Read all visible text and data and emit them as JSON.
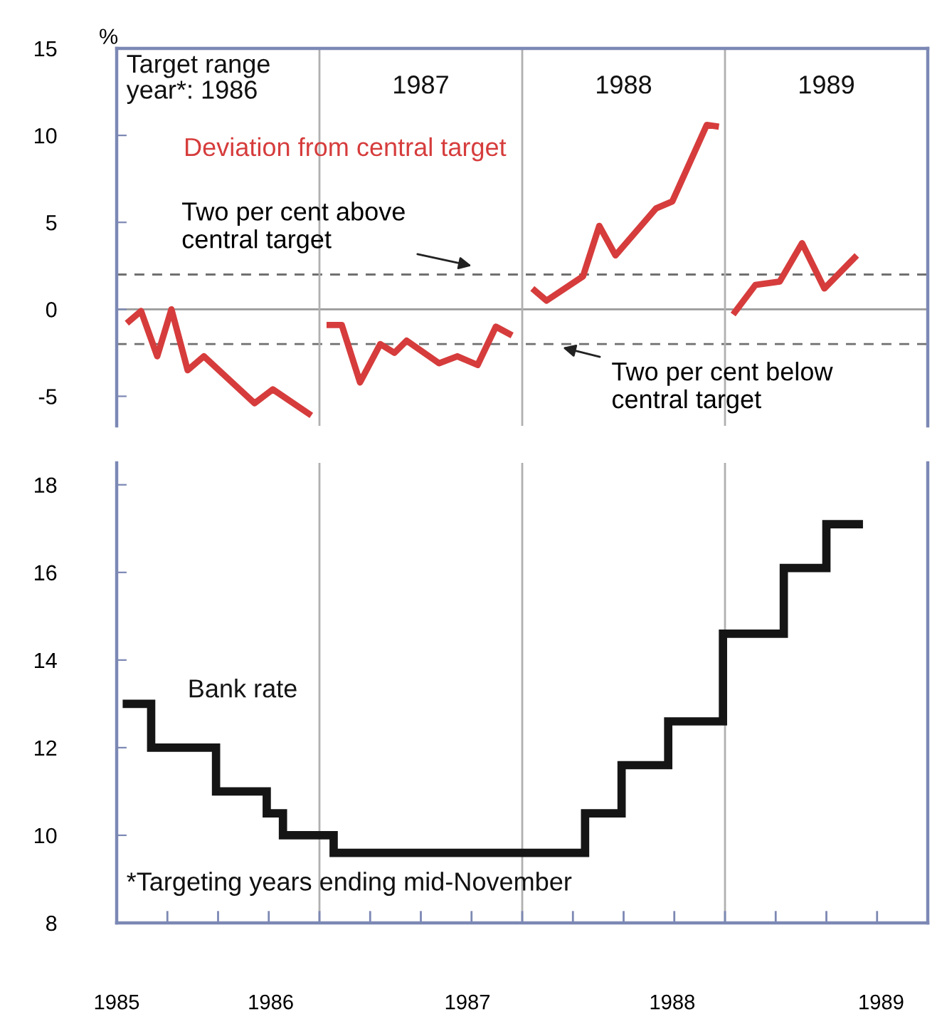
{
  "chart_data": [
    {
      "type": "line",
      "ylabel": "%",
      "xlim": [
        1985.0,
        1989.0
      ],
      "ylim": [
        -6.7,
        15
      ],
      "yticks": [
        -5,
        0,
        5,
        10,
        15
      ],
      "tick_labels": "y",
      "grid": false,
      "legend": false,
      "annotations": [
        "Target range\nyear*: 1986",
        "1987",
        "1988",
        "1989"
      ],
      "series": [
        {
          "name": "Deviation from central target",
          "color": "#d63c3c",
          "x": [
            1985.05,
            1985.12,
            1985.2,
            1985.27,
            1985.35,
            1985.43,
            1985.68,
            1985.77,
            1985.96,
            1985.99,
            1986.035,
            1986.11,
            1986.2,
            1986.3,
            1986.37,
            1986.43,
            1986.59,
            1986.68,
            1986.78,
            1986.87,
            1986.95,
            1986.99,
            1987.05,
            1987.12,
            1987.3,
            1987.38,
            1987.46,
            1987.66,
            1987.74,
            1987.91,
            1987.97,
            1987.99,
            1988.04,
            1988.15,
            1988.27,
            1988.38,
            1988.49,
            1988.65
          ],
          "values": [
            -0.8,
            -0.1,
            -2.7,
            0.0,
            -3.5,
            -2.7,
            -5.4,
            -4.6,
            -6.1,
            null,
            -0.9,
            -0.9,
            -4.2,
            -2.0,
            -2.5,
            -1.8,
            -3.1,
            -2.7,
            -3.2,
            -1.0,
            -1.5,
            null,
            1.2,
            0.5,
            1.9,
            4.8,
            3.1,
            5.8,
            6.2,
            10.6,
            10.5,
            null,
            -0.3,
            1.4,
            1.6,
            3.8,
            1.2,
            3.1
          ]
        }
      ],
      "ref_lines": [
        {
          "axis": "y",
          "value": 0,
          "color": "#9a9a9a",
          "line_style": "solid"
        },
        {
          "axis": "y",
          "value": 2,
          "label": "Two per cent above\ncentral target",
          "color": "#707070",
          "line_style": "dashed"
        },
        {
          "axis": "y",
          "value": -2,
          "label": "Two per cent below\ncentral target",
          "color": "#707070",
          "line_style": "dashed"
        },
        {
          "axis": "x",
          "value": 1986.0,
          "color": "#b0b0b0",
          "line_style": "solid"
        },
        {
          "axis": "x",
          "value": 1987.0,
          "color": "#b0b0b0",
          "line_style": "solid"
        },
        {
          "axis": "x",
          "value": 1988.0,
          "color": "#b0b0b0",
          "line_style": "solid"
        }
      ]
    },
    {
      "type": "step",
      "xlim": [
        1985.0,
        1989.0
      ],
      "ylim": [
        8,
        18.5
      ],
      "yticks": [
        8,
        10,
        12,
        14,
        16,
        18
      ],
      "grid": false,
      "legend": false,
      "xticks": [
        {
          "value": 1985.0,
          "label": "1985"
        },
        {
          "value": 1985.76,
          "label": "1986"
        },
        {
          "value": 1986.73,
          "label": "1987"
        },
        {
          "value": 1987.74,
          "label": "1988"
        },
        {
          "value": 1988.77,
          "label": "1989"
        },
        {
          "value": 1985.25,
          "label": null
        },
        {
          "value": 1985.5,
          "label": null
        },
        {
          "value": 1985.75,
          "label": null
        },
        {
          "value": 1986.0,
          "label": null
        },
        {
          "value": 1986.25,
          "label": null
        },
        {
          "value": 1986.5,
          "label": null
        },
        {
          "value": 1986.75,
          "label": null
        },
        {
          "value": 1987.0,
          "label": null
        },
        {
          "value": 1987.25,
          "label": null
        },
        {
          "value": 1987.5,
          "label": null
        },
        {
          "value": 1987.75,
          "label": null
        },
        {
          "value": 1988.0,
          "label": null
        },
        {
          "value": 1988.25,
          "label": null
        },
        {
          "value": 1988.5,
          "label": null
        },
        {
          "value": 1988.75,
          "label": null
        }
      ],
      "annotations": [
        "*Targeting years ending mid-November"
      ],
      "series": [
        {
          "name": "Bank rate",
          "color": "#151515",
          "x": [
            1985.05,
            1985.17,
            1985.49,
            1985.74,
            1985.82,
            1986.07,
            1987.31,
            1987.49,
            1987.72,
            1987.99,
            1988.29,
            1988.5,
            1988.66
          ],
          "values": [
            13,
            12,
            11,
            10.5,
            10,
            9.6,
            10.5,
            11.6,
            12.6,
            14.6,
            16.1,
            17.1,
            17.1
          ]
        }
      ],
      "ref_lines": [
        {
          "axis": "x",
          "value": 1986.0,
          "color": "#b0b0b0",
          "line_style": "solid"
        },
        {
          "axis": "x",
          "value": 1987.0,
          "color": "#b0b0b0",
          "line_style": "solid"
        },
        {
          "axis": "x",
          "value": 1988.0,
          "color": "#b0b0b0",
          "line_style": "solid"
        }
      ]
    }
  ]
}
